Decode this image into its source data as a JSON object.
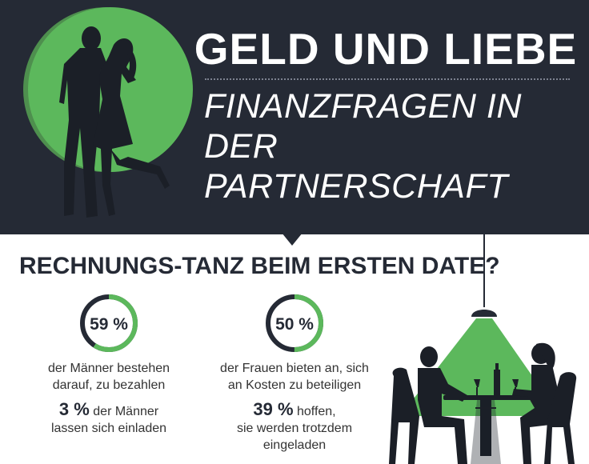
{
  "header": {
    "title": "GELD UND LIEBE",
    "subtitle_line1": "FINANZFRAGEN IN DER",
    "subtitle_line2": "PARTNERSCHAFT"
  },
  "section": {
    "heading": "RECHNUNGS-TANZ BEIM ERSTEN DATE?"
  },
  "stats": {
    "men": {
      "percent_label": "59 %",
      "percent_value": 59,
      "caption_line1": "der Männer bestehen",
      "caption_line2": "darauf, zu bezahlen",
      "secondary_value": "3 %",
      "secondary_text1": "der Männer",
      "secondary_text2": "lassen sich einladen"
    },
    "women": {
      "percent_label": "50 %",
      "percent_value": 50,
      "caption_line1": "der Frauen bieten an, sich",
      "caption_line2": "an Kosten zu beteiligen",
      "secondary_value": "39 %",
      "secondary_text1": "hoffen,",
      "secondary_text2": "sie werden trotzdem",
      "secondary_text3": "eingeladen"
    }
  },
  "colors": {
    "navy": "#252a35",
    "green": "#5cb85c",
    "white": "#ffffff"
  },
  "icons": {
    "hero": "couple-silhouette-icon",
    "scene": "dinner-date-illustration-icon"
  }
}
